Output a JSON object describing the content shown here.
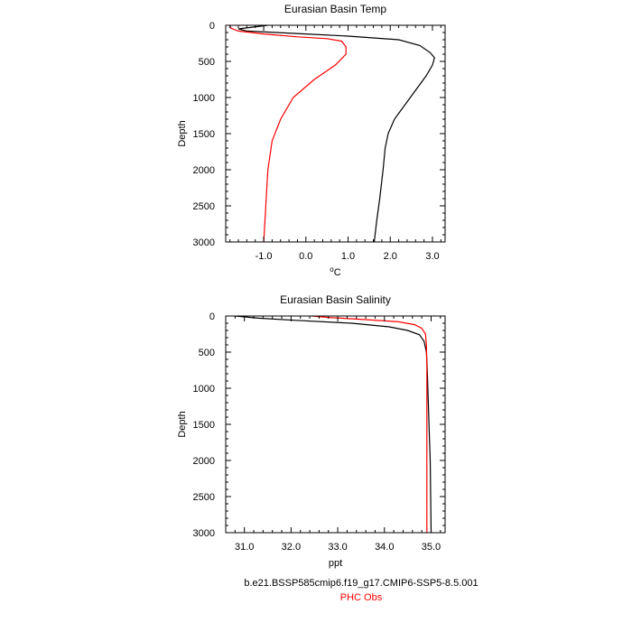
{
  "chart_data": [
    {
      "type": "line",
      "title": "Eurasian Basin Temp",
      "xlabel_base": "o",
      "xlabel_unit": "C",
      "ylabel": "Depth",
      "xlim": [
        -1.9,
        3.3
      ],
      "ylim": [
        3000,
        0
      ],
      "x_ticks": [
        -1.0,
        0.0,
        1.0,
        2.0,
        3.0
      ],
      "x_tick_labels": [
        "-1.0",
        "0.0",
        "1.0",
        "2.0",
        "3.0"
      ],
      "y_ticks": [
        0,
        500,
        1000,
        1500,
        2000,
        2500,
        3000
      ],
      "y_tick_labels": [
        "0",
        "500",
        "1000",
        "1500",
        "2000",
        "2500",
        "3000"
      ],
      "grid": false,
      "series": [
        {
          "name": "b.e21.BSSP585cmip6.f19_g17.CMIP6-SSP5-8.5.001",
          "color": "#000000",
          "points": [
            [
              -0.9,
              0
            ],
            [
              -1.6,
              50
            ],
            [
              -1.4,
              80
            ],
            [
              0.0,
              120
            ],
            [
              1.0,
              150
            ],
            [
              2.2,
              200
            ],
            [
              2.7,
              280
            ],
            [
              2.95,
              380
            ],
            [
              3.05,
              450
            ],
            [
              3.0,
              550
            ],
            [
              2.85,
              700
            ],
            [
              2.6,
              900
            ],
            [
              2.35,
              1100
            ],
            [
              2.1,
              1300
            ],
            [
              1.95,
              1500
            ],
            [
              1.88,
              1700
            ],
            [
              1.83,
              2000
            ],
            [
              1.75,
              2400
            ],
            [
              1.68,
              2700
            ],
            [
              1.62,
              3000
            ]
          ]
        },
        {
          "name": "PHC Obs",
          "color": "#ff0000",
          "points": [
            [
              -1.8,
              0
            ],
            [
              -1.78,
              40
            ],
            [
              -1.6,
              80
            ],
            [
              -1.0,
              120
            ],
            [
              -0.2,
              160
            ],
            [
              0.5,
              185
            ],
            [
              0.85,
              220
            ],
            [
              0.95,
              300
            ],
            [
              0.95,
              400
            ],
            [
              0.7,
              550
            ],
            [
              0.2,
              750
            ],
            [
              -0.3,
              1000
            ],
            [
              -0.6,
              1300
            ],
            [
              -0.8,
              1600
            ],
            [
              -0.9,
              2000
            ],
            [
              -0.95,
              2500
            ],
            [
              -1.0,
              3000
            ]
          ]
        }
      ]
    },
    {
      "type": "line",
      "title": "Eurasian Basin Salinity",
      "xlabel": "ppt",
      "ylabel": "Depth",
      "xlim": [
        30.6,
        35.3
      ],
      "ylim": [
        3000,
        0
      ],
      "x_ticks": [
        31.0,
        32.0,
        33.0,
        34.0,
        35.0
      ],
      "x_tick_labels": [
        "31.0",
        "32.0",
        "33.0",
        "34.0",
        "35.0"
      ],
      "y_ticks": [
        0,
        500,
        1000,
        1500,
        2000,
        2500,
        3000
      ],
      "y_tick_labels": [
        "0",
        "500",
        "1000",
        "1500",
        "2000",
        "2500",
        "3000"
      ],
      "grid": false,
      "series": [
        {
          "name": "b.e21.BSSP585cmip6.f19_g17.CMIP6-SSP5-8.5.001",
          "color": "#000000",
          "points": [
            [
              30.8,
              0
            ],
            [
              31.3,
              30
            ],
            [
              32.1,
              60
            ],
            [
              33.3,
              100
            ],
            [
              34.1,
              150
            ],
            [
              34.5,
              200
            ],
            [
              34.75,
              260
            ],
            [
              34.85,
              350
            ],
            [
              34.9,
              500
            ],
            [
              34.92,
              800
            ],
            [
              34.94,
              1200
            ],
            [
              34.96,
              1600
            ],
            [
              34.98,
              2000
            ],
            [
              34.99,
              2500
            ],
            [
              35.0,
              3000
            ]
          ]
        },
        {
          "name": "PHC Obs",
          "color": "#ff0000",
          "points": [
            [
              32.45,
              0
            ],
            [
              32.8,
              20
            ],
            [
              33.6,
              50
            ],
            [
              34.3,
              80
            ],
            [
              34.65,
              120
            ],
            [
              34.8,
              170
            ],
            [
              34.88,
              250
            ],
            [
              34.9,
              400
            ],
            [
              34.91,
              700
            ],
            [
              34.91,
              1200
            ],
            [
              34.91,
              2000
            ],
            [
              34.91,
              3000
            ]
          ]
        }
      ]
    }
  ],
  "legend": {
    "entries": [
      {
        "label": "b.e21.BSSP585cmip6.f19_g17.CMIP6-SSP5-8.5.001",
        "color": "#000000"
      },
      {
        "label": "PHC Obs",
        "color": "#ff0000"
      }
    ]
  }
}
